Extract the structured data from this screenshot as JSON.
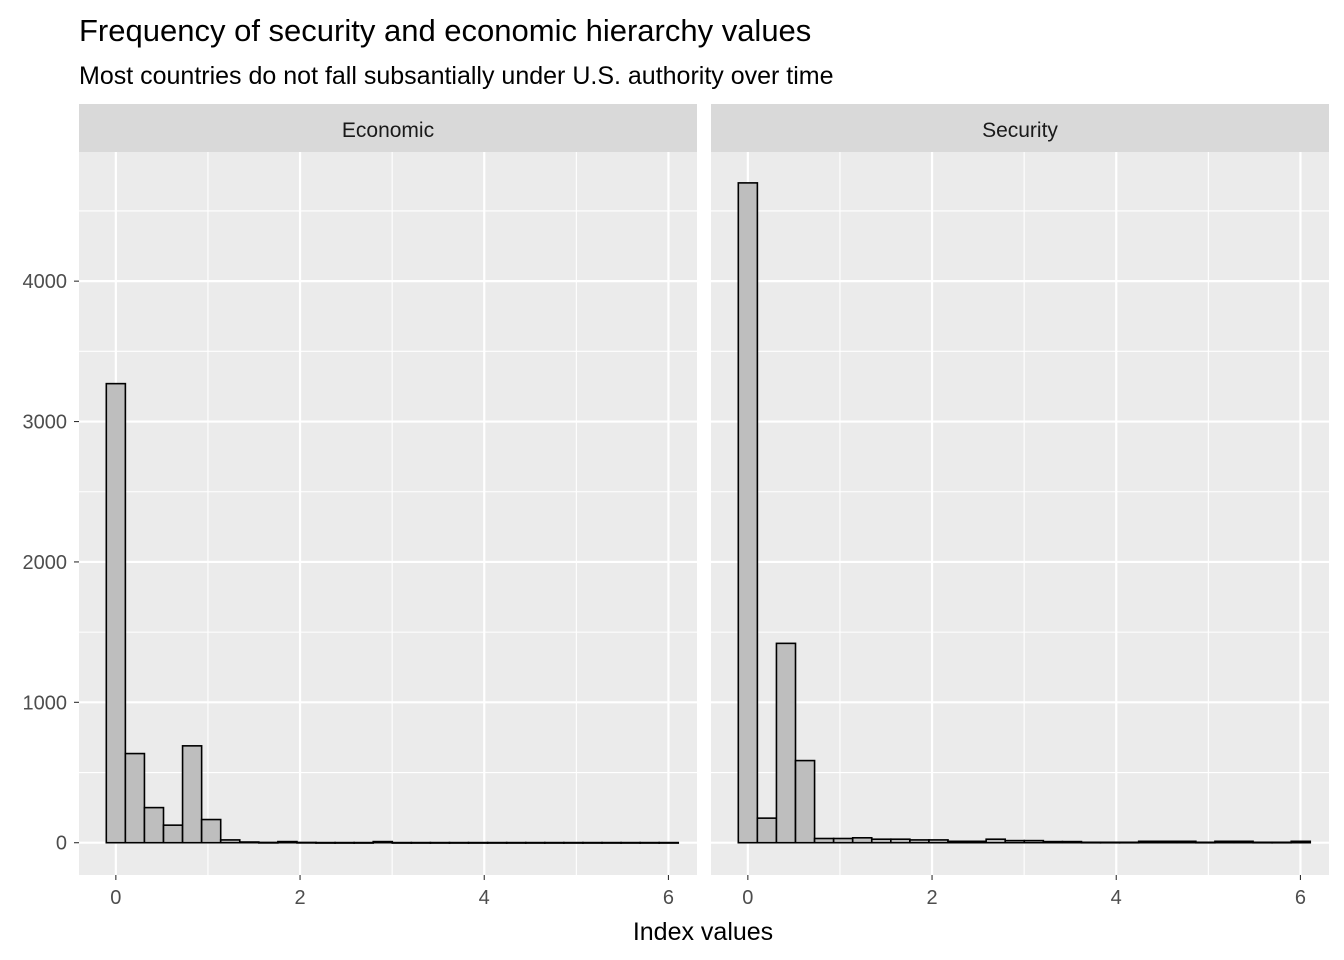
{
  "chart_data": {
    "type": "bar",
    "title": "Frequency of security and economic hierarchy values",
    "subtitle": "Most countries do not fall subsantially under U.S. authority over time",
    "xlabel": "Index values",
    "ylabel": "",
    "xlim": [
      -0.4,
      6.31
    ],
    "ylim": [
      -230,
      4920
    ],
    "x_ticks": [
      0,
      2,
      4,
      6
    ],
    "y_ticks": [
      0,
      1000,
      2000,
      3000,
      4000
    ],
    "bin_width": 0.207,
    "grid": true,
    "legend": "none",
    "colors": {
      "bar_fill": "#bebebe",
      "bar_stroke": "#000000",
      "panel_bg": "#ebebeb",
      "strip_bg": "#d9d9d9",
      "grid": "#ffffff"
    },
    "panels": [
      {
        "name": "Economic",
        "bin_centers": [
          0,
          0.207,
          0.414,
          0.621,
          0.828,
          1.035,
          1.242,
          1.449,
          1.656,
          1.863,
          2.07,
          2.277,
          2.484,
          2.691,
          2.898,
          3.105,
          3.312,
          3.519,
          3.726,
          3.933,
          4.14,
          4.347,
          4.554,
          4.761,
          4.968,
          5.175,
          5.382,
          5.589,
          5.796,
          6.003
        ],
        "values": [
          3270,
          635,
          250,
          125,
          690,
          165,
          20,
          5,
          2,
          8,
          2,
          1,
          1,
          1,
          8,
          1,
          1,
          1,
          1,
          1,
          1,
          1,
          1,
          1,
          1,
          1,
          1,
          1,
          1,
          1
        ]
      },
      {
        "name": "Security",
        "bin_centers": [
          0,
          0.207,
          0.414,
          0.621,
          0.828,
          1.035,
          1.242,
          1.449,
          1.656,
          1.863,
          2.07,
          2.277,
          2.484,
          2.691,
          2.898,
          3.105,
          3.312,
          3.519,
          3.726,
          3.933,
          4.14,
          4.347,
          4.554,
          4.761,
          4.968,
          5.175,
          5.382,
          5.589,
          5.796,
          6.003
        ],
        "values": [
          4700,
          175,
          1420,
          585,
          30,
          30,
          35,
          25,
          25,
          20,
          20,
          10,
          10,
          25,
          15,
          15,
          8,
          8,
          3,
          3,
          3,
          10,
          10,
          10,
          3,
          10,
          10,
          3,
          3,
          10
        ]
      }
    ]
  }
}
